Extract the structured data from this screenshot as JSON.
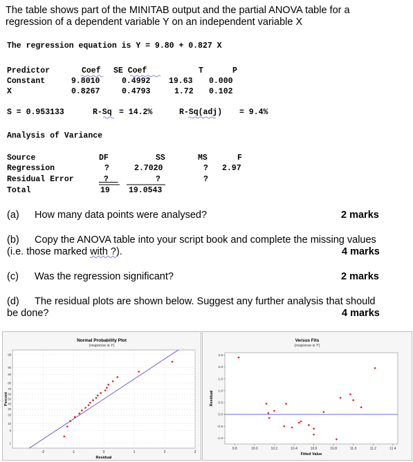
{
  "intro": {
    "line1": "The table shows part of the MINITAB output and the partial ANOVA table for a",
    "line2": "regression of a dependent variable Y on an independent variable X"
  },
  "equation": "The regression equation is Y = 9.80 + 0.827 X",
  "coef_table": {
    "headers": [
      "Predictor",
      "Coef",
      "SE Coef",
      "T",
      "P"
    ],
    "rows": [
      [
        "Constant",
        "9.8010",
        "0.4992",
        "19.63",
        "0.000"
      ],
      [
        "X",
        "0.8267",
        "0.4793",
        "1.72",
        "0.102"
      ]
    ]
  },
  "fit_stats": {
    "s": "S = 0.953133",
    "rsq_label": "R-Sq",
    "rsq_value": "= 14.2%",
    "rsqadj_label": "R-Sq(adj)",
    "rsqadj_value": "= 9.4%"
  },
  "anova": {
    "title": "Analysis of Variance",
    "headers": [
      "Source",
      "DF",
      "SS",
      "MS",
      "F"
    ],
    "rows": [
      [
        "Regression",
        "?",
        "2.7020",
        "?",
        "2.97"
      ],
      [
        "Residual Error",
        "?",
        "?",
        "?",
        ""
      ],
      [
        "Total",
        "19",
        "19.0543",
        "",
        ""
      ]
    ]
  },
  "questions": [
    {
      "label": "(a)",
      "text": "How many data points were analysed?",
      "marks": "2 marks"
    },
    {
      "label": "(b)",
      "text": "Copy the ANOVA table into your script book and complete the missing values",
      "text2_pre": "(i.e. those marked ",
      "text2_ul": "with ?",
      "text2_post": ").",
      "marks": "4 marks"
    },
    {
      "label": "(c)",
      "text": "Was the regression significant?",
      "marks": "2 marks"
    },
    {
      "label": "(d)",
      "text": "The residual plots are shown below. Suggest any further analysis that should",
      "text2": "be done?",
      "marks": "4 marks"
    }
  ],
  "chart_data": [
    {
      "type": "scatter",
      "title": "Normal Probability Plot",
      "subtitle": "(response is Y)",
      "xlabel": "Residual",
      "ylabel": "Percent",
      "xlim": [
        -3,
        3
      ],
      "xticks": [
        "-2",
        "-1",
        "0",
        "1",
        "2",
        "3"
      ],
      "yticks": [
        "99",
        "95",
        "90",
        "80",
        "70",
        "60",
        "50",
        "40",
        "30",
        "20",
        "10",
        "5",
        "1"
      ],
      "series": [
        {
          "x": [
            -1.3,
            -1.2,
            -1.1,
            -0.95,
            -0.8,
            -0.72,
            -0.6,
            -0.5,
            -0.45,
            -0.35,
            -0.25,
            -0.2,
            -0.1,
            0.05,
            0.1,
            0.15,
            0.3,
            0.45,
            1.15,
            2.25
          ],
          "y": [
            2.5,
            7.5,
            12.5,
            17.5,
            22.5,
            27.5,
            32.5,
            37.5,
            42.5,
            47.5,
            52.5,
            57.5,
            62.5,
            67.5,
            72.5,
            77.5,
            82.5,
            87.5,
            92.5,
            97.5
          ]
        }
      ],
      "grid": true
    },
    {
      "type": "scatter",
      "title": "Versus Fits",
      "subtitle": "(response is Y)",
      "xlabel": "Fitted Value",
      "ylabel": "Residual",
      "xlim": [
        9.7,
        11.45
      ],
      "ylim": [
        -1.25,
        2.6
      ],
      "xticks": [
        "9.8",
        "10.0",
        "10.2",
        "10.4",
        "10.6",
        "10.8",
        "11.0",
        "11.2",
        "11.4"
      ],
      "yticks": [
        "2.5",
        "2.0",
        "1.5",
        "1.0",
        "0.5",
        "0.0",
        "-0.5",
        "-1.0"
      ],
      "series": [
        {
          "x": [
            9.84,
            10.12,
            10.14,
            10.15,
            10.2,
            10.3,
            10.32,
            10.38,
            10.45,
            10.47,
            10.55,
            10.6,
            10.6,
            10.7,
            10.83,
            10.87,
            10.97,
            11.0,
            11.08,
            11.22
          ],
          "y": [
            2.4,
            0.45,
            0.05,
            -0.15,
            0.15,
            -0.5,
            0.45,
            -0.55,
            -0.35,
            -0.3,
            -0.45,
            -0.6,
            -0.85,
            0.1,
            -1.05,
            0.7,
            0.85,
            0.6,
            0.3,
            1.95
          ]
        }
      ],
      "grid": false
    }
  ]
}
